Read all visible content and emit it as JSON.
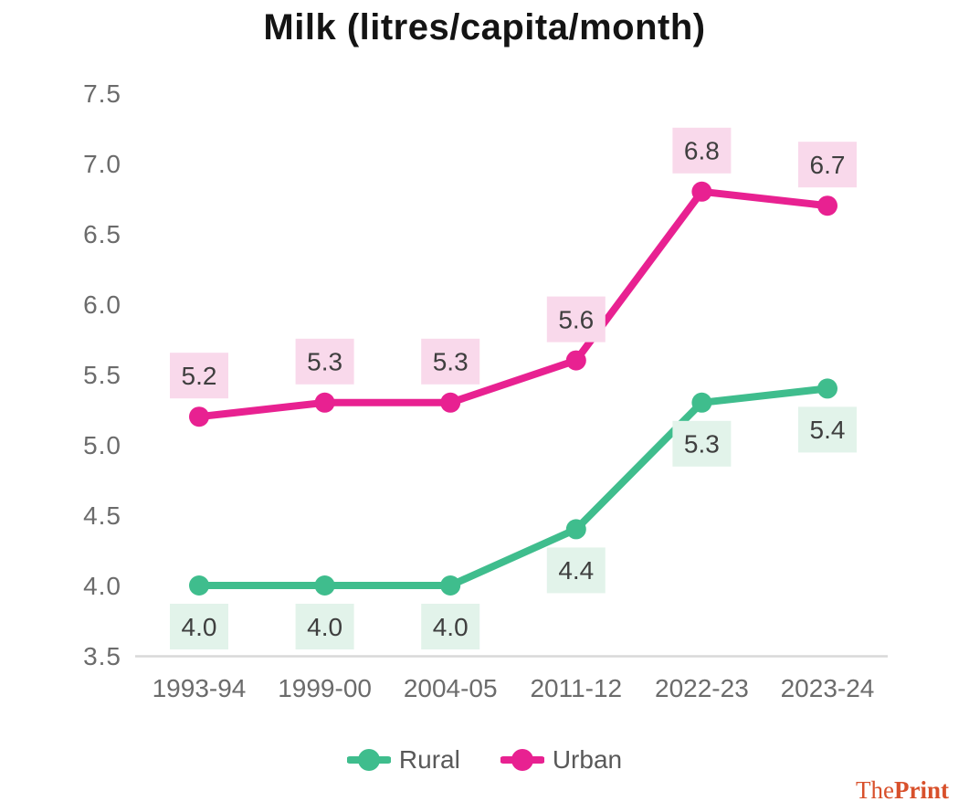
{
  "title": "Milk (litres/capita/month)",
  "chart_data": {
    "type": "line",
    "title": "Milk (litres/capita/month)",
    "categories": [
      "1993-94",
      "1999-00",
      "2004-05",
      "2011-12",
      "2022-23",
      "2023-24"
    ],
    "series": [
      {
        "name": "Urban",
        "color": "#e82191",
        "label_bg": "#f9d9eb",
        "values": [
          5.2,
          5.3,
          5.3,
          5.6,
          6.8,
          6.7
        ],
        "labels": [
          "5.2",
          "5.3",
          "5.3",
          "5.6",
          "6.8",
          "6.7"
        ],
        "label_side": "above"
      },
      {
        "name": "Rural",
        "color": "#3fbd8d",
        "label_bg": "#e2f3ea",
        "values": [
          4.0,
          4.0,
          4.0,
          4.4,
          5.3,
          5.4
        ],
        "labels": [
          "4.0",
          "4.0",
          "4.0",
          "4.4",
          "5.3",
          "5.4"
        ],
        "label_side": "below"
      }
    ],
    "xlabel": "",
    "ylabel": "",
    "ylim": [
      3.5,
      7.5
    ],
    "yticks": [
      "7.5",
      "7.0",
      "6.5",
      "6.0",
      "5.5",
      "5.0",
      "4.5",
      "4.0",
      "3.5"
    ],
    "grid": false,
    "legend_position": "bottom",
    "axis_color": "#d9d9d9",
    "tick_color": "#6b6b6b",
    "value_label_color": "#3f3f3f"
  },
  "legend": {
    "items": [
      {
        "label": "Rural",
        "color": "#3fbd8d"
      },
      {
        "label": "Urban",
        "color": "#e82191"
      }
    ]
  },
  "branding": {
    "the": "The",
    "print": "Print",
    "color": "#d8502b"
  }
}
